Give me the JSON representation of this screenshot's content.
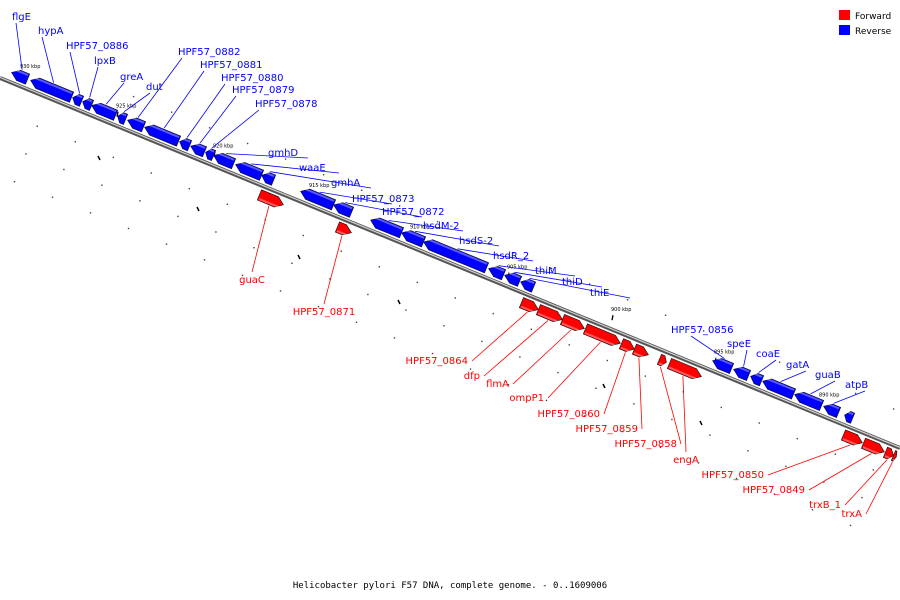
{
  "title": "Helicobacter pylori F57 DNA, complete genome. - 0..1609006",
  "legend": [
    {
      "label": "Forward",
      "color": "#ff0000"
    },
    {
      "label": "Reverse",
      "color": "#0000ff"
    }
  ],
  "colors": {
    "forward": "#ff0000",
    "reverse": "#0000ff",
    "backbone": "#888888"
  },
  "ticks": [
    "930 kbp",
    "925 kbp",
    "920 kbp",
    "915 kbp",
    "910 kbp",
    "905 kbp",
    "900 kbp",
    "895 kbp",
    "890 kbp"
  ],
  "reverse_genes": [
    "flgE",
    "hypA",
    "HPF57_0886",
    "lpxB",
    "greA",
    "dut",
    "HPF57_0882",
    "HPF57_0881",
    "HPF57_0880",
    "HPF57_0879",
    "HPF57_0878",
    "gmhD",
    "waaE",
    "gmhA",
    "HPF57_0873",
    "HPF57_0872",
    "hsdM-2",
    "hsdS-2",
    "hsdR_2",
    "thiM",
    "thiD",
    "thiE",
    "HPF57_0856",
    "speE",
    "coaE",
    "gatA",
    "guaB",
    "atpB"
  ],
  "forward_genes": [
    "guaC",
    "HPF57_0871",
    "HPF57_0864",
    "dfp",
    "flmA",
    "ompP1",
    "HPF57_0860",
    "HPF57_0859",
    "HPF57_0858",
    "engA",
    "HPF57_0850",
    "HPF57_0849",
    "trxB_1",
    "trxA"
  ]
}
